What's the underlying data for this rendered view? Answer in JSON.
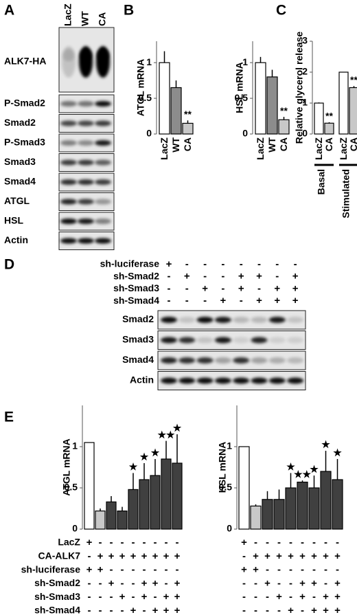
{
  "panel_labels": [
    "A",
    "B",
    "C",
    "D",
    "E"
  ],
  "blot_a": {
    "lanes": [
      "LacZ",
      "WT",
      "CA"
    ],
    "rows": [
      "ALK7-HA",
      "P-Smad2",
      "Smad2",
      "P-Smad3",
      "Smad3",
      "Smad4",
      "ATGL",
      "HSL",
      "Actin"
    ]
  },
  "blot_d": {
    "conditions": [
      {
        "label": "sh-luciferase",
        "marks": [
          "+",
          "-",
          "-",
          "-",
          "-",
          "-",
          "-",
          "-"
        ]
      },
      {
        "label": "sh-Smad2",
        "marks": [
          "-",
          "+",
          "-",
          "-",
          "+",
          "+",
          "-",
          "+"
        ]
      },
      {
        "label": "sh-Smad3",
        "marks": [
          "-",
          "-",
          "+",
          "-",
          "+",
          "-",
          "+",
          "+"
        ]
      },
      {
        "label": "sh-Smad4",
        "marks": [
          "-",
          "-",
          "-",
          "+",
          "-",
          "+",
          "+",
          "+"
        ]
      }
    ],
    "rows": [
      "Smad2",
      "Smad3",
      "Smad4",
      "Actin"
    ]
  },
  "table_e": [
    {
      "label": "LacZ",
      "marks": [
        "+",
        "-",
        "-",
        "-",
        "-",
        "-",
        "-",
        "-",
        "-"
      ]
    },
    {
      "label": "CA-ALK7",
      "marks": [
        "-",
        "+",
        "+",
        "+",
        "+",
        "+",
        "+",
        "+",
        "+"
      ]
    },
    {
      "label": "sh-luciferase",
      "marks": [
        "+",
        "+",
        "-",
        "-",
        "-",
        "-",
        "-",
        "-",
        "-"
      ]
    },
    {
      "label": "sh-Smad2",
      "marks": [
        "-",
        "-",
        "+",
        "-",
        "-",
        "+",
        "+",
        "-",
        "+"
      ]
    },
    {
      "label": "sh-Smad3",
      "marks": [
        "-",
        "-",
        "-",
        "+",
        "-",
        "+",
        "-",
        "+",
        "+"
      ]
    },
    {
      "label": "sh-Smad4",
      "marks": [
        "-",
        "-",
        "-",
        "-",
        "+",
        "-",
        "+",
        "+",
        "+"
      ]
    }
  ],
  "chart_data": [
    {
      "type": "bar",
      "y_label": "ATGL mRNA",
      "categories": [
        "LacZ",
        "WT",
        "CA"
      ],
      "values": [
        1.0,
        0.65,
        0.15
      ],
      "errors": [
        0.16,
        0.1,
        0.04
      ],
      "colors": [
        "#ffffff",
        "#8c8c8c",
        "#c8c8c8"
      ],
      "annotations": [
        null,
        null,
        "**"
      ],
      "ylim": [
        0,
        1.3
      ],
      "yticks": [
        0,
        0.5,
        1
      ]
    },
    {
      "type": "bar",
      "y_label": "HSL mRNA",
      "categories": [
        "LacZ",
        "WT",
        "CA"
      ],
      "values": [
        1.0,
        0.8,
        0.2
      ],
      "errors": [
        0.08,
        0.1,
        0.04
      ],
      "colors": [
        "#ffffff",
        "#8c8c8c",
        "#c8c8c8"
      ],
      "annotations": [
        null,
        null,
        "**"
      ],
      "ylim": [
        0,
        1.3
      ],
      "yticks": [
        0,
        0.5,
        1
      ]
    },
    {
      "type": "bar",
      "y_label": "Relative glycerol release",
      "categories": [
        "LacZ",
        "CA",
        "LacZ",
        "CA"
      ],
      "groups": [
        "Basal",
        "Stimulated"
      ],
      "values": [
        1.0,
        0.35,
        2.0,
        1.5
      ],
      "errors": [
        0.02,
        0.03,
        0,
        0.05
      ],
      "colors": [
        "#ffffff",
        "#c8c8c8",
        "#ffffff",
        "#c8c8c8"
      ],
      "annotations": [
        null,
        "**",
        null,
        "**"
      ],
      "ylim": [
        0,
        3
      ],
      "yticks": [
        0,
        1,
        2,
        3
      ]
    },
    {
      "type": "bar",
      "y_label": "ATGL mRNA",
      "values": [
        1.05,
        0.22,
        0.33,
        0.22,
        0.48,
        0.6,
        0.65,
        0.85,
        0.8
      ],
      "errors": [
        0,
        0.03,
        0.07,
        0.05,
        0.2,
        0.2,
        0.2,
        0.22,
        0.35
      ],
      "colors": [
        "#ffffff",
        "#c8c8c8",
        "#404040",
        "#404040",
        "#404040",
        "#404040",
        "#404040",
        "#404040",
        "#404040"
      ],
      "annotations": [
        null,
        null,
        null,
        null,
        "★",
        "★",
        "★",
        "★★",
        "★"
      ],
      "ylim": [
        0,
        1.5
      ],
      "yticks": [
        0,
        0.5,
        1
      ]
    },
    {
      "type": "bar",
      "y_label": "HSL mRNA",
      "values": [
        1.0,
        0.28,
        0.36,
        0.36,
        0.5,
        0.57,
        0.5,
        0.7,
        0.6
      ],
      "errors": [
        0,
        0.02,
        0.1,
        0.12,
        0.18,
        0.02,
        0.15,
        0.25,
        0.25
      ],
      "colors": [
        "#ffffff",
        "#c8c8c8",
        "#404040",
        "#404040",
        "#404040",
        "#404040",
        "#404040",
        "#404040",
        "#404040"
      ],
      "annotations": [
        null,
        null,
        null,
        null,
        "★",
        "★★",
        "★",
        "★",
        "★"
      ],
      "ylim": [
        0,
        1.5
      ],
      "yticks": [
        0,
        0.5,
        1
      ]
    }
  ]
}
